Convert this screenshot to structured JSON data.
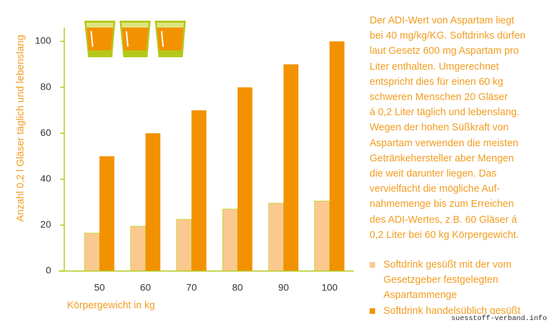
{
  "chart_data": {
    "type": "bar",
    "categories": [
      "50",
      "60",
      "70",
      "80",
      "90",
      "100"
    ],
    "series": [
      {
        "name": "Softdrink gesüßt mit der vom Gesetzgeber festgelegten Aspartammenge",
        "values": [
          16.5,
          19.5,
          22.5,
          27,
          29.5,
          30.5
        ],
        "color": "#fbc98f"
      },
      {
        "name": "Softdrink handelsüblich gesüßt",
        "values": [
          50,
          60,
          70,
          80,
          90,
          100
        ],
        "color": "#f39200"
      }
    ],
    "xlabel": "Körpergewicht in kg",
    "ylabel": "Anzahl 0,2 l Gläser täglich und lebenslang",
    "ylim": [
      0,
      100
    ],
    "yticks": [
      0,
      20,
      40,
      60,
      80,
      100
    ],
    "grid": false,
    "legend": "bottom-right"
  },
  "header_icons": [
    "glass-icon",
    "glass-icon",
    "glass-icon"
  ],
  "description": {
    "lines": [
      "Der ADI-Wert von Aspartam liegt",
      "bei 40 mg/kg/KG. Softdrinks dürfen",
      "laut Gesetz 600 mg Aspartam pro",
      "Liter enthalten. Umgerechnet",
      "entspricht dies für einen 60 kg",
      "schweren Menschen 20 Gläser",
      "á 0,2 Liter täglich und lebenslang.",
      "Wegen der hohen Süßkraft von",
      "Aspartam verwenden die meisten",
      "Getränkehersteller aber Mengen",
      "die weit darunter liegen. Das",
      "vervielfacht die mögliche Auf-",
      "nahmemenge bis zum Erreichen",
      "des ADI-Wertes, z.B. 60 Gläser á",
      "0,2 Liter bei 60 kg Körpergewicht."
    ]
  },
  "watermark": "suesstoff-verband.info",
  "colors": {
    "text": "#f29d22",
    "tick_text": "#333333",
    "axis": "#b5c81b",
    "bar_outline": "#c9d43f",
    "glass_frame": "#b5c81b",
    "glass_rim_inner": "#dde57e",
    "glass_liquid": "#f39200"
  }
}
